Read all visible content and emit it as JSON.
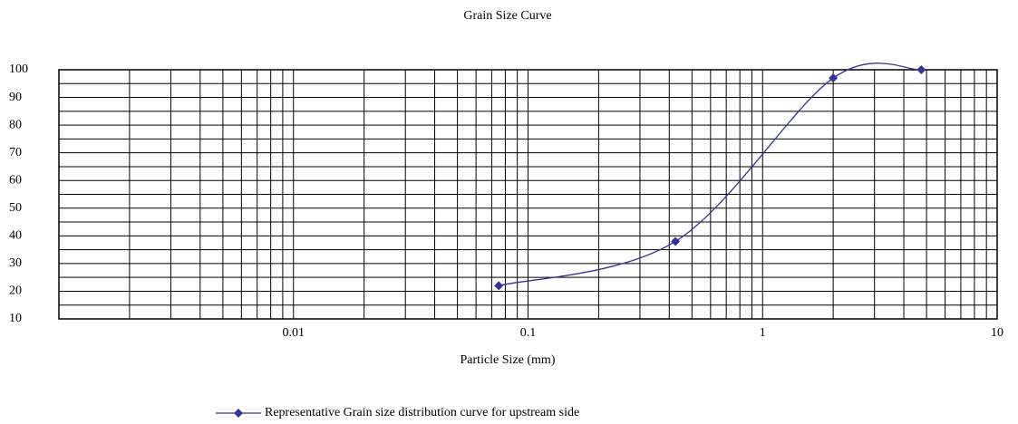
{
  "chart_data": {
    "type": "line",
    "title": "Grain Size Curve",
    "x_label": "Particle Size (mm)",
    "x": [
      0.075,
      0.425,
      2.0,
      4.75
    ],
    "series": [
      {
        "name": "Representative  Grain size distribution curve for upstream side",
        "color": "#333399",
        "values": [
          22,
          38,
          97,
          100
        ]
      }
    ],
    "xlim": [
      0.001,
      10
    ],
    "xticks": [
      0.01,
      0.1,
      1,
      10
    ],
    "xlog": true,
    "ylim": [
      10,
      100
    ],
    "yticks": [
      10,
      20,
      30,
      40,
      50,
      60,
      70,
      80,
      90,
      100
    ],
    "grid": true,
    "minor_grid": true,
    "legend": "bottom"
  }
}
